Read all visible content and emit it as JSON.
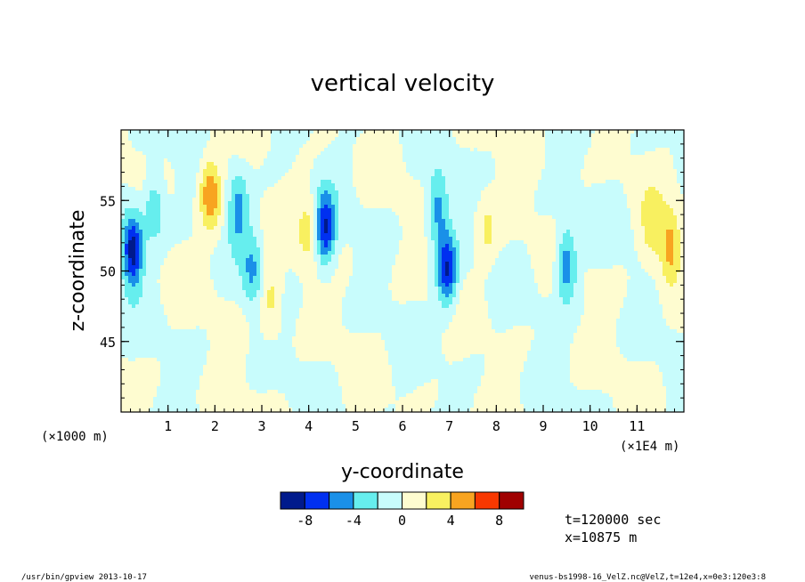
{
  "chart_data": {
    "type": "heatmap",
    "title": "vertical velocity",
    "xlabel": "y-coordinate",
    "ylabel": "z-coordinate",
    "x_unit_left": "(×1000 m)",
    "x_unit_right": "(×1E4 m)",
    "xlim": [
      0,
      12
    ],
    "ylim": [
      40,
      60
    ],
    "xticks": [
      1,
      2,
      3,
      4,
      5,
      6,
      7,
      8,
      9,
      10,
      11
    ],
    "xtick_labels": [
      "1",
      "2",
      "3",
      "4",
      "5",
      "6",
      "7",
      "8",
      "9",
      "10",
      "11"
    ],
    "yticks": [
      45,
      50,
      55
    ],
    "ytick_labels": [
      "45",
      "50",
      "55"
    ],
    "colorbar": {
      "levels": [
        -10,
        -8,
        -6,
        -4,
        -2,
        0,
        2,
        4,
        6,
        8,
        10
      ],
      "colors": [
        "#001a8c",
        "#0030f0",
        "#1a90e8",
        "#66eeee",
        "#c8fcfc",
        "#fefcd0",
        "#f8f060",
        "#f8a420",
        "#f83800",
        "#a00000"
      ],
      "tick_labels": [
        "-8",
        "-4",
        "0",
        "4",
        "8"
      ],
      "tick_values": [
        -8,
        -4,
        0,
        4,
        8
      ]
    },
    "features": [
      {
        "y": 0.25,
        "z": 51.5,
        "w": -9.5
      },
      {
        "y": 0.7,
        "z": 54.5,
        "w": -4
      },
      {
        "y": 1.9,
        "z": 55.5,
        "w": 6
      },
      {
        "y": 2.5,
        "z": 54.5,
        "w": -5
      },
      {
        "y": 2.8,
        "z": 50,
        "w": -4
      },
      {
        "y": 3.2,
        "z": 48,
        "w": 3
      },
      {
        "y": 4.35,
        "z": 53,
        "w": -8
      },
      {
        "y": 4.0,
        "z": 53,
        "w": 3
      },
      {
        "y": 6.75,
        "z": 54.5,
        "w": -5
      },
      {
        "y": 6.95,
        "z": 50,
        "w": -8
      },
      {
        "y": 7.8,
        "z": 53,
        "w": 2.5
      },
      {
        "y": 9.5,
        "z": 50.5,
        "w": -6
      },
      {
        "y": 11.7,
        "z": 51.5,
        "w": 5
      },
      {
        "y": 11.3,
        "z": 53,
        "w": 3
      }
    ]
  },
  "annotations": {
    "time": "t=120000 sec",
    "position": "x=10875 m"
  },
  "footer": {
    "left": "/usr/bin/gpview   2013-10-17",
    "right": "venus-bs1998-16_VelZ.nc@VelZ,t=12e4,x=0e3:120e3:8"
  }
}
